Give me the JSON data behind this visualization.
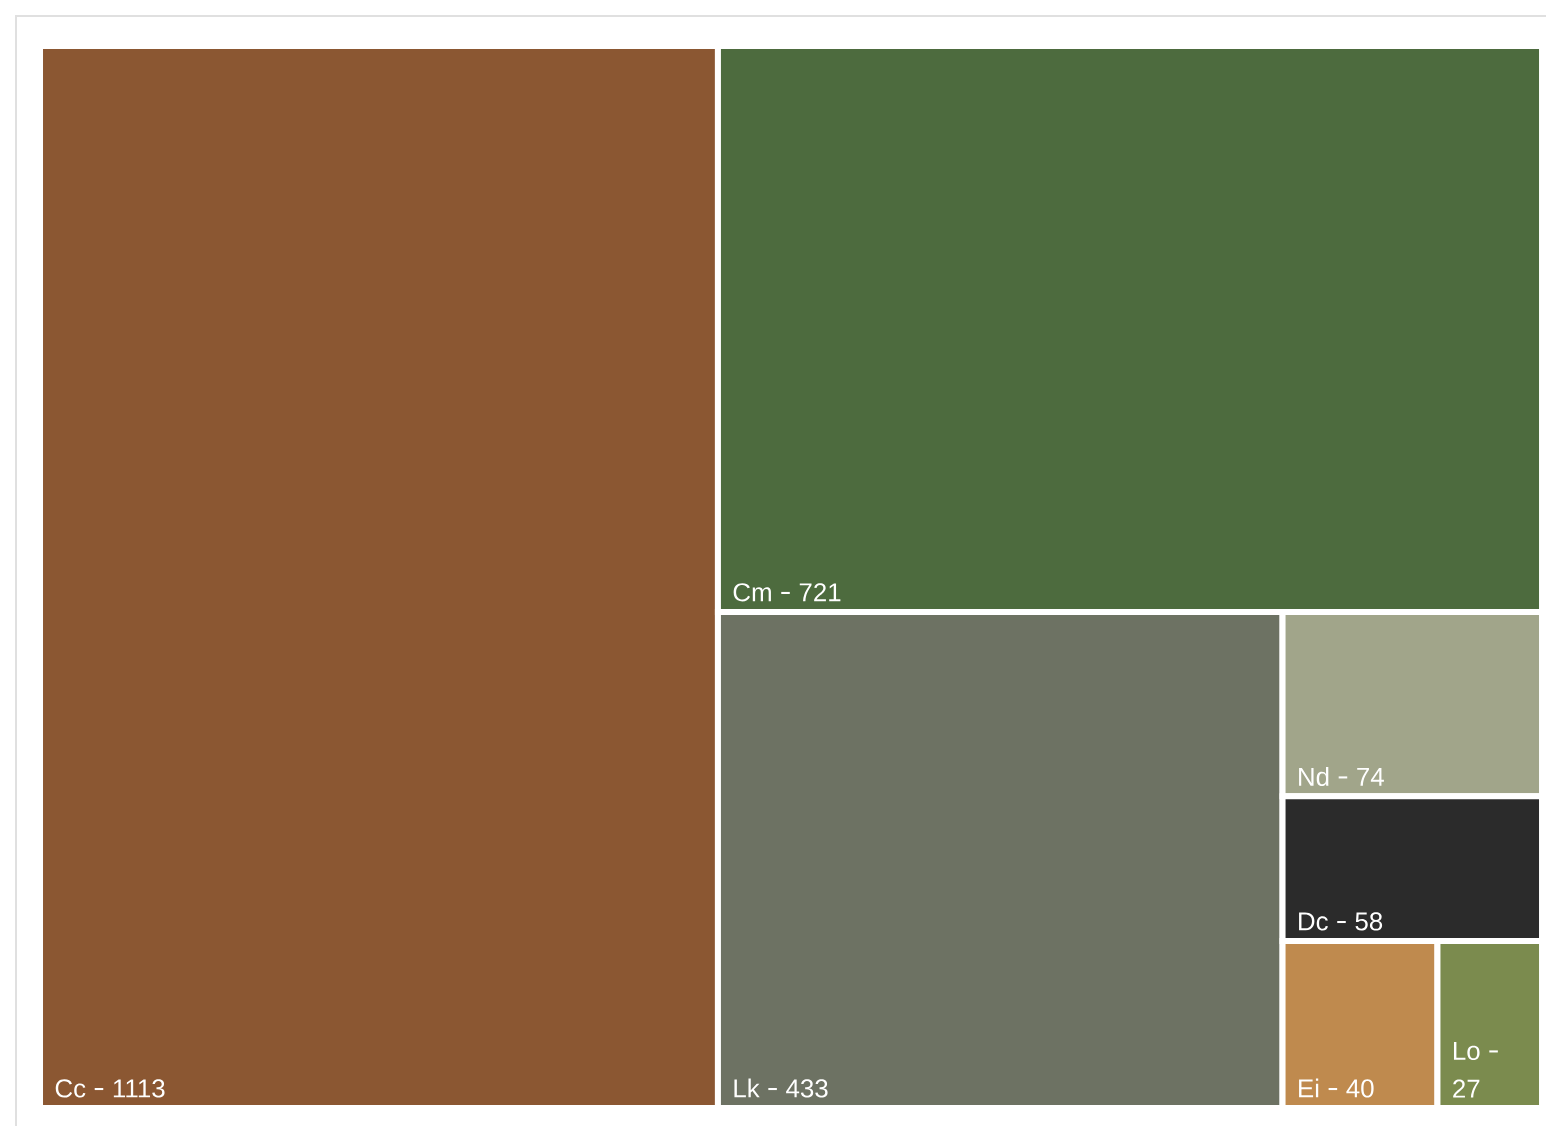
{
  "chart_data": {
    "type": "other",
    "categories": [
      "Cc",
      "Cm",
      "Lk",
      "Nd",
      "Dc",
      "Ei",
      "Lo"
    ],
    "values": [
      1113,
      721,
      433,
      74,
      58,
      40,
      27
    ],
    "value_labels": [
      "1113",
      "721",
      "433",
      "74",
      "58",
      "40",
      "27"
    ],
    "colors": [
      "#8b5732",
      "#4d6b3e",
      "#6d7263",
      "#a1a58a",
      "#2b2b2b",
      "#bf8a4e",
      "#7b8b4e"
    ]
  }
}
